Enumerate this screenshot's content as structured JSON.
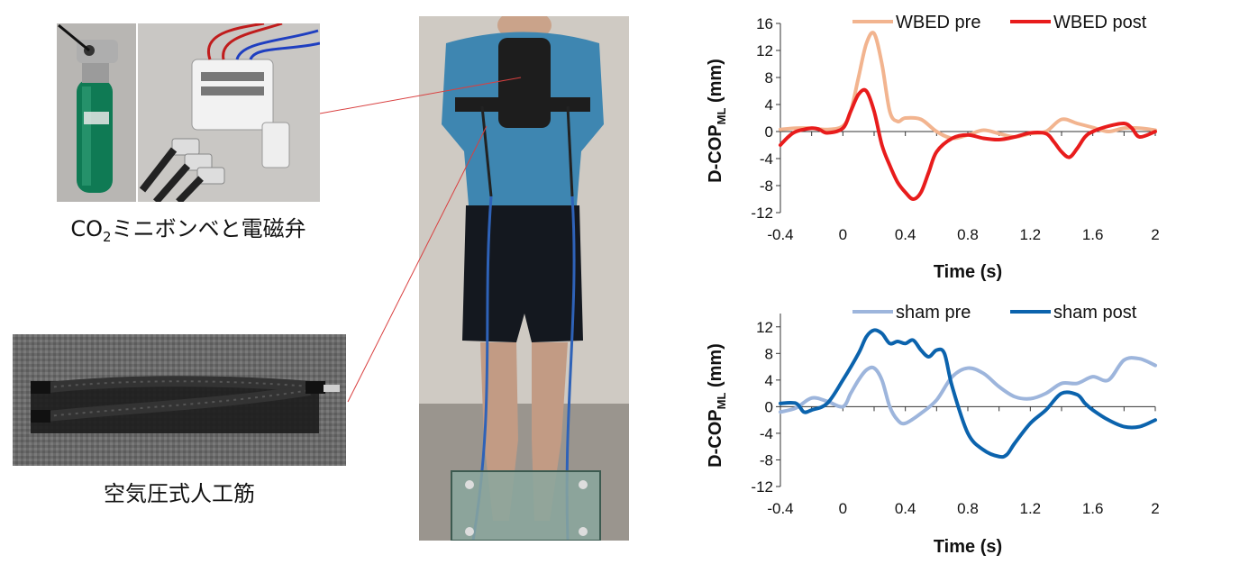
{
  "captions": {
    "cylinder_valve_main": "CO",
    "cylinder_valve_sub": "2",
    "cylinder_valve_rest": "ミニボンベと電磁弁",
    "artificial_muscle": "空気圧式人工筋"
  },
  "colors": {
    "wbed_pre": "#f2b48f",
    "wbed_post": "#e81c1c",
    "sham_pre": "#9db5dc",
    "sham_post": "#0b63ad",
    "pointer_line": "#d94040"
  },
  "chart_data": [
    {
      "type": "line",
      "title": "",
      "xlabel": "Time (s)",
      "ylabel_main": "D-COP",
      "ylabel_sub": "ML",
      "ylabel_unit": " (mm)",
      "xlim": [
        -0.4,
        2.0
      ],
      "ylim": [
        -12,
        16
      ],
      "xticks": [
        -0.4,
        0,
        0.4,
        0.8,
        1.2,
        1.6,
        2
      ],
      "xtick_labels": [
        "-0.4",
        "0",
        "0.4",
        "0.8",
        "1.2",
        "1.6",
        "2"
      ],
      "yticks": [
        -12,
        -8,
        -4,
        0,
        4,
        8,
        12,
        16
      ],
      "ytick_labels": [
        "-12",
        "-8",
        "-4",
        "0",
        "4",
        "8",
        "12",
        "16"
      ],
      "legend_position": "top-right",
      "series": [
        {
          "name": "WBED pre",
          "color_key": "wbed_pre",
          "x": [
            -0.4,
            -0.3,
            -0.2,
            -0.1,
            0,
            0.05,
            0.1,
            0.15,
            0.2,
            0.25,
            0.3,
            0.35,
            0.4,
            0.5,
            0.6,
            0.7,
            0.8,
            0.9,
            1.0,
            1.1,
            1.2,
            1.3,
            1.4,
            1.5,
            1.6,
            1.7,
            1.8,
            1.9,
            2.0
          ],
          "y": [
            0.3,
            0.5,
            0.5,
            0.3,
            0.8,
            3,
            8,
            13,
            14.5,
            10,
            3,
            1.5,
            2,
            1.8,
            0,
            -1,
            -0.5,
            0.2,
            -0.3,
            -0.8,
            -0.3,
            0,
            1.8,
            1.2,
            0.6,
            0,
            0.5,
            0.5,
            0.2
          ]
        },
        {
          "name": "WBED post",
          "color_key": "wbed_post",
          "x": [
            -0.4,
            -0.35,
            -0.3,
            -0.2,
            -0.15,
            -0.1,
            0,
            0.05,
            0.1,
            0.15,
            0.2,
            0.25,
            0.3,
            0.35,
            0.4,
            0.45,
            0.5,
            0.55,
            0.6,
            0.7,
            0.8,
            0.9,
            1.0,
            1.1,
            1.2,
            1.3,
            1.35,
            1.4,
            1.45,
            1.5,
            1.55,
            1.6,
            1.7,
            1.8,
            1.85,
            1.9,
            2.0
          ],
          "y": [
            -2,
            -0.8,
            0,
            0.5,
            0.3,
            -0.2,
            0.5,
            3,
            5.5,
            6,
            3,
            -2,
            -5,
            -7.5,
            -9,
            -10,
            -9,
            -6,
            -3,
            -1,
            -0.5,
            -1,
            -1.2,
            -0.8,
            -0.2,
            -0.3,
            -1.5,
            -3,
            -3.8,
            -2.5,
            -0.8,
            0,
            0.8,
            1.2,
            0.5,
            -0.8,
            0
          ]
        }
      ]
    },
    {
      "type": "line",
      "title": "",
      "xlabel": "Time (s)",
      "ylabel_main": "D-COP",
      "ylabel_sub": "ML",
      "ylabel_unit": " (mm)",
      "xlim": [
        -0.4,
        2.0
      ],
      "ylim": [
        -12,
        14
      ],
      "xticks": [
        -0.4,
        0,
        0.4,
        0.8,
        1.2,
        1.6,
        2
      ],
      "xtick_labels": [
        "-0.4",
        "0",
        "0.4",
        "0.8",
        "1.2",
        "1.6",
        "2"
      ],
      "yticks": [
        -12,
        -8,
        -4,
        0,
        4,
        8,
        12
      ],
      "ytick_labels": [
        "-12",
        "-8",
        "-4",
        "0",
        "4",
        "8",
        "12"
      ],
      "legend_position": "top-right",
      "series": [
        {
          "name": "sham pre",
          "color_key": "sham_pre",
          "x": [
            -0.4,
            -0.3,
            -0.2,
            -0.1,
            0,
            0.05,
            0.1,
            0.15,
            0.2,
            0.25,
            0.3,
            0.35,
            0.4,
            0.5,
            0.6,
            0.7,
            0.8,
            0.9,
            1.0,
            1.1,
            1.2,
            1.3,
            1.4,
            1.5,
            1.6,
            1.7,
            1.8,
            1.9,
            2.0
          ],
          "y": [
            -0.8,
            -0.2,
            1.3,
            0.8,
            0,
            2,
            4,
            5.5,
            5.8,
            4,
            0,
            -2,
            -2.5,
            -1,
            1,
            4.5,
            5.8,
            5,
            3,
            1.5,
            1.2,
            2,
            3.5,
            3.5,
            4.5,
            4,
            7,
            7.2,
            6.2
          ]
        },
        {
          "name": "sham post",
          "color_key": "sham_post",
          "x": [
            -0.4,
            -0.3,
            -0.25,
            -0.2,
            -0.1,
            0,
            0.1,
            0.15,
            0.2,
            0.25,
            0.3,
            0.35,
            0.4,
            0.45,
            0.5,
            0.55,
            0.6,
            0.65,
            0.7,
            0.8,
            0.9,
            1.0,
            1.05,
            1.1,
            1.2,
            1.3,
            1.4,
            1.5,
            1.55,
            1.6,
            1.7,
            1.8,
            1.9,
            2.0
          ],
          "y": [
            0.5,
            0.5,
            -0.8,
            -0.5,
            0.5,
            4,
            8,
            10.5,
            11.5,
            11,
            9.5,
            9.8,
            9.5,
            10,
            8.5,
            7.5,
            8.5,
            8,
            3,
            -4,
            -6.5,
            -7.5,
            -7.2,
            -5.5,
            -2.5,
            -0.5,
            2,
            1.8,
            0.5,
            -0.5,
            -2,
            -3,
            -3,
            -2
          ]
        }
      ]
    }
  ]
}
